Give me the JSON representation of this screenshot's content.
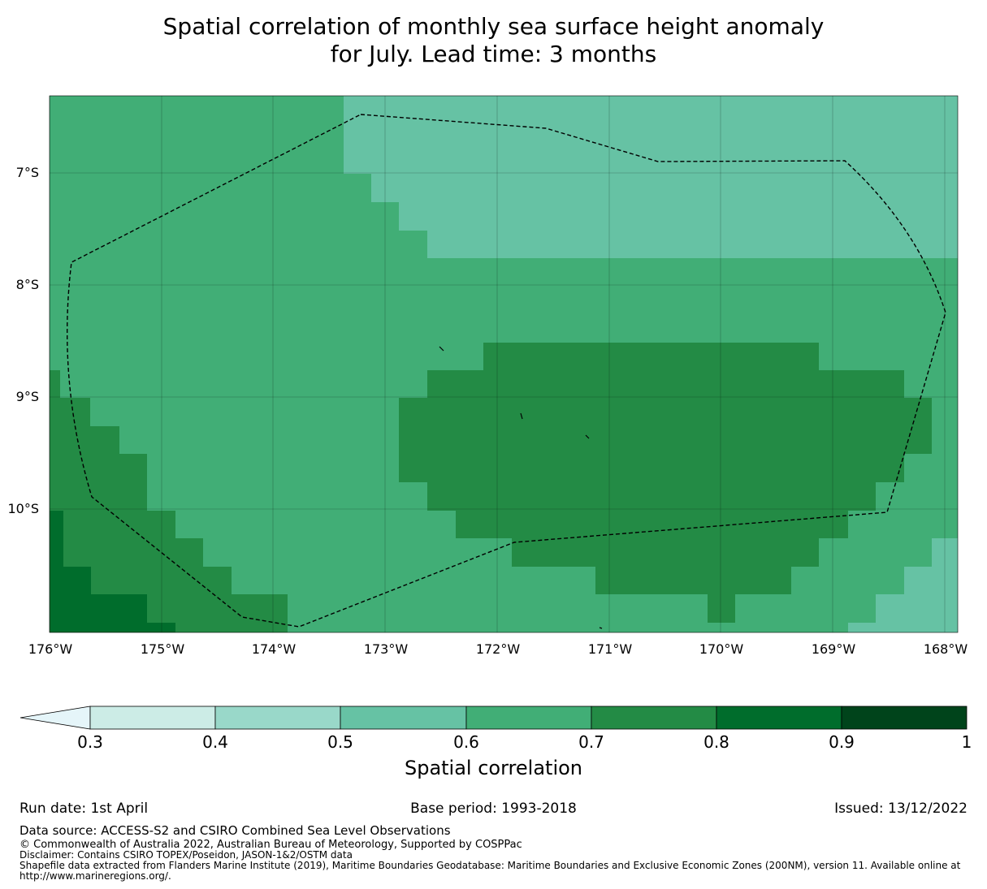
{
  "title": {
    "line1": "Spatial correlation of monthly sea surface height anomaly",
    "line2": "for July. Lead time: 3 months"
  },
  "map": {
    "lat_ticks": [
      "7°S",
      "8°S",
      "9°S",
      "10°S"
    ],
    "lon_ticks": [
      "176°W",
      "175°W",
      "174°W",
      "173°W",
      "172°W",
      "171°W",
      "170°W",
      "169°W",
      "168°W"
    ],
    "extent": {
      "lon_min": -176,
      "lon_max": -167.9,
      "lat_min": -11.1,
      "lat_max": -6.3
    },
    "boundary_style": "dashed black (EEZ)",
    "gridlines": true
  },
  "colorbar": {
    "label": "Spatial correlation",
    "ticks": [
      "0.3",
      "0.4",
      "0.5",
      "0.6",
      "0.7",
      "0.8",
      "0.9",
      "1"
    ],
    "bins": [
      {
        "range": "<0.3",
        "color": "#e5f5f9"
      },
      {
        "range": "0.3-0.4",
        "color": "#ccece6"
      },
      {
        "range": "0.4-0.5",
        "color": "#99d8c9"
      },
      {
        "range": "0.5-0.6",
        "color": "#66c2a4"
      },
      {
        "range": "0.6-0.7",
        "color": "#41ae76"
      },
      {
        "range": "0.7-0.8",
        "color": "#238b45"
      },
      {
        "range": "0.8-0.9",
        "color": "#006d2c"
      },
      {
        "range": "0.9-1",
        "color": "#00441b"
      }
    ],
    "extend": "min"
  },
  "info": {
    "run_date": "Run date: 1st April",
    "base_period": "Base period: 1993-2018",
    "issued": "Issued: 13/12/2022"
  },
  "footer": {
    "source": "Data source: ACCESS-S2 and CSIRO Combined Sea Level Observations",
    "copyright": "© Commonwealth of Australia 2022, Australian Bureau of Meteorology, Supported by COSPPac",
    "disclaimer": "Disclaimer: Contains CSIRO TOPEX/Poseidon, JASON-1&2/OSTM data",
    "shapefile": "Shapefile data extracted from Flanders Marine Institute (2019), Maritime Boundaries Geodatabase: Maritime Boundaries and Exclusive Economic Zones (200NM), version 11. Available online at",
    "url": "http://www.marineregions.org/."
  }
}
